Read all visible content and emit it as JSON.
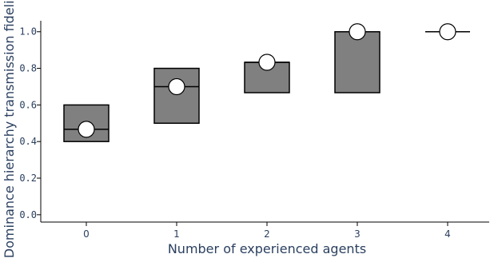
{
  "chart_data": {
    "type": "box",
    "xlabel": "Number of experienced agents",
    "ylabel": "Dominance hierarchy transmission fidelidy",
    "x_categories": [
      "0",
      "1",
      "2",
      "3",
      "4"
    ],
    "y_ticks": [
      "0.0",
      "0.2",
      "0.4",
      "0.6",
      "0.8",
      "1.0"
    ],
    "ylim": [
      -0.04,
      1.06
    ],
    "grid": false,
    "box_color": "#808080",
    "series": [
      {
        "x": 0,
        "q1": 0.4,
        "median": 0.467,
        "q3": 0.6,
        "mean": 0.467
      },
      {
        "x": 1,
        "q1": 0.5,
        "median": 0.7,
        "q3": 0.8,
        "mean": 0.7
      },
      {
        "x": 2,
        "q1": 0.667,
        "median": 0.833,
        "q3": 0.833,
        "mean": 0.833
      },
      {
        "x": 3,
        "q1": 0.667,
        "median": 1.0,
        "q3": 1.0,
        "mean": 1.0
      },
      {
        "x": 4,
        "q1": 1.0,
        "median": 1.0,
        "q3": 1.0,
        "mean": 1.0
      }
    ]
  }
}
